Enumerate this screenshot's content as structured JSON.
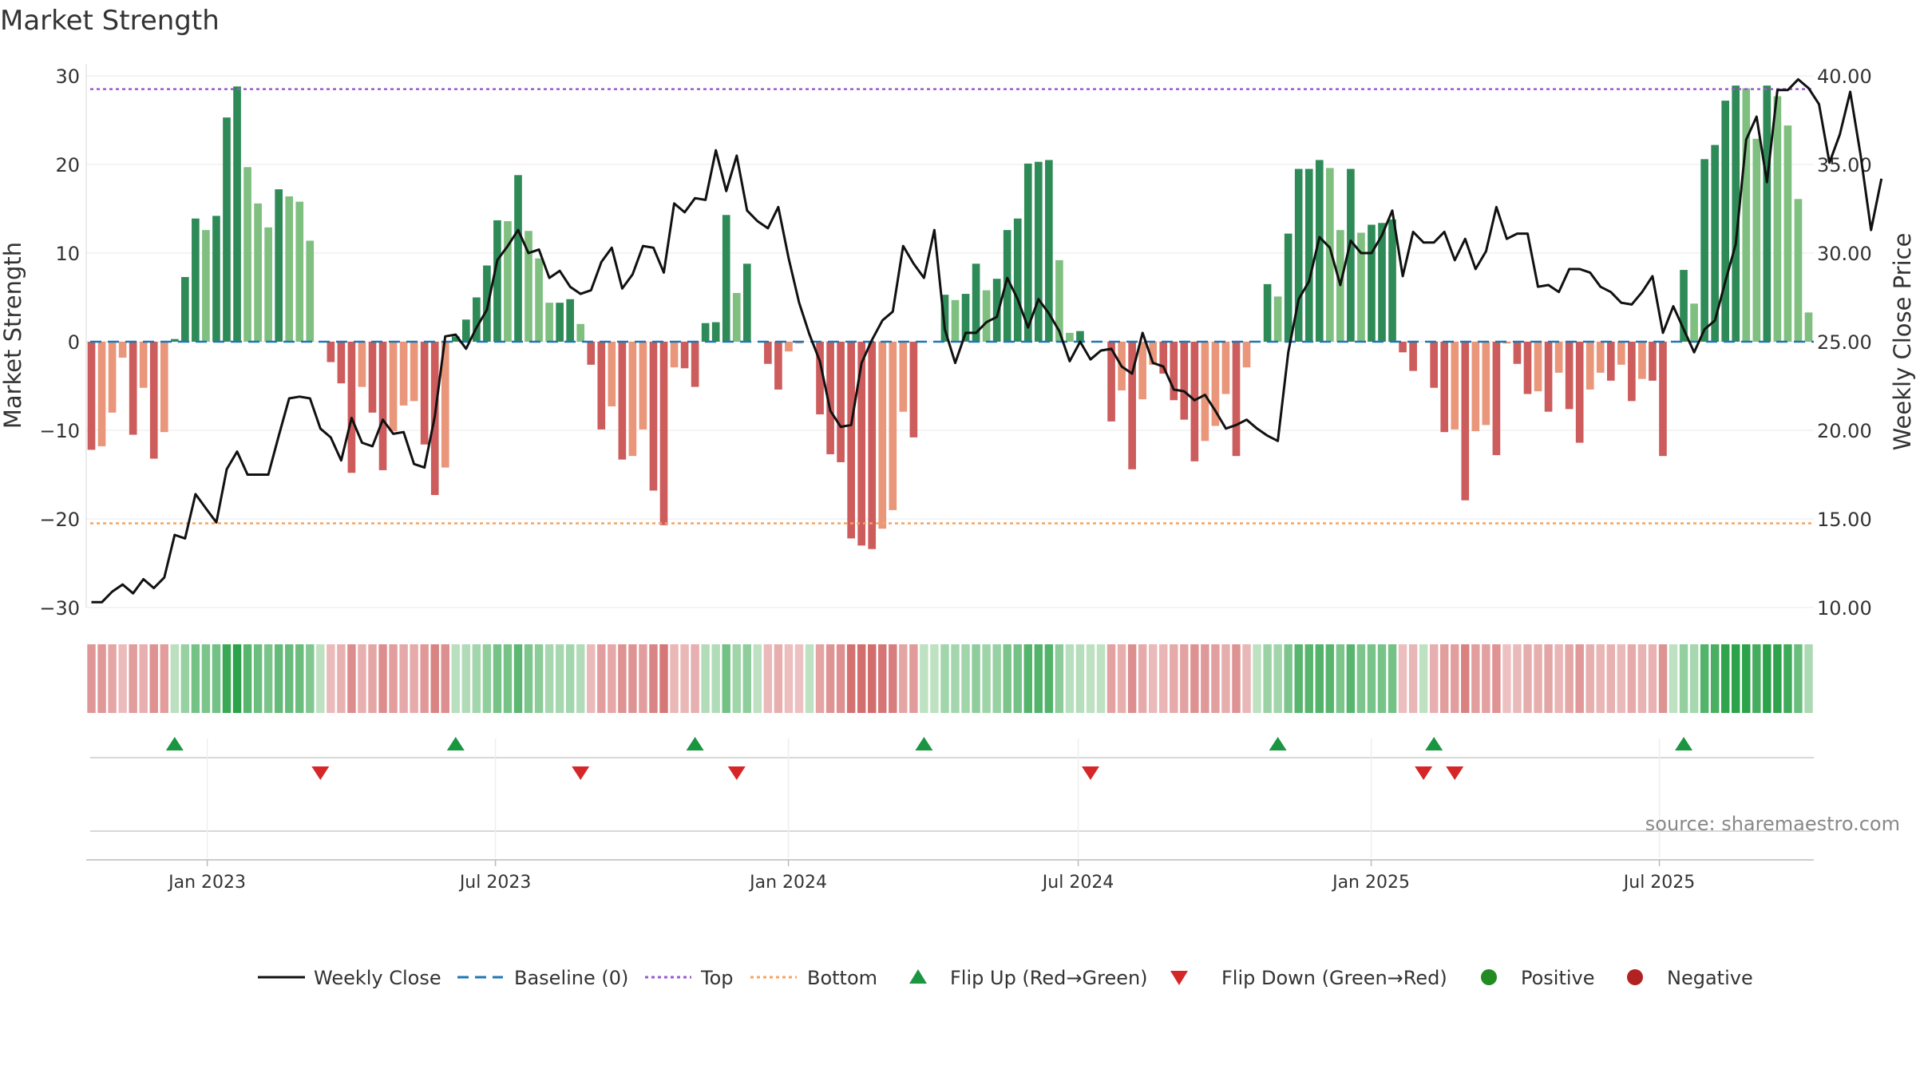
{
  "chart_data": {
    "type": "bar",
    "title": "Market Strength",
    "ylabel_left": "Market Strength",
    "ylabel_right": "Weekly Close Price",
    "ylim_left": [
      -30,
      30
    ],
    "ylim_right": [
      10,
      40
    ],
    "yticks_left": [
      30,
      20,
      10,
      0,
      -10,
      -20,
      -30
    ],
    "yticks_left_labels": [
      "30",
      "20",
      "10",
      "0",
      "−10",
      "−20",
      "−30"
    ],
    "yticks_right": [
      40,
      35,
      30,
      25,
      20,
      15,
      10
    ],
    "yticks_right_labels": [
      "40.00",
      "35.00",
      "30.00",
      "25.00",
      "20.00",
      "15.00",
      "10.00"
    ],
    "x_range": [
      "2022-10-17",
      "2025-10-06"
    ],
    "x_ticks": [
      {
        "label": "Jan 2023",
        "date": "2023-01-01"
      },
      {
        "label": "Jul 2023",
        "date": "2023-07-01"
      },
      {
        "label": "Jan 2024",
        "date": "2024-01-01"
      },
      {
        "label": "Jul 2024",
        "date": "2024-07-01"
      },
      {
        "label": "Jan 2025",
        "date": "2025-01-01"
      },
      {
        "label": "Jul 2025",
        "date": "2025-07-01"
      }
    ],
    "top_line": 28.5,
    "bottom_line": -20.5,
    "baseline": 0,
    "strength": [
      -12.2,
      -11.8,
      -8,
      -1.8,
      -10.5,
      -5.2,
      -13.2,
      -10.2,
      0.3,
      7.3,
      13.9,
      12.6,
      14.2,
      25.3,
      28.8,
      19.7,
      15.6,
      12.9,
      17.2,
      16.4,
      15.8,
      11.4,
      0,
      -2.3,
      -4.7,
      -14.8,
      -5.1,
      -8,
      -14.5,
      -10.1,
      -7.2,
      -6.7,
      -11.6,
      -17.3,
      -14.2,
      0.6,
      2.5,
      5,
      8.6,
      13.7,
      13.6,
      18.8,
      12.5,
      9.4,
      4.4,
      4.4,
      4.8,
      2,
      -2.6,
      -9.9,
      -7.3,
      -13.3,
      -12.9,
      -9.9,
      -16.8,
      -20.7,
      -2.9,
      -3,
      -5.1,
      2.1,
      2.2,
      14.3,
      5.5,
      8.8,
      0,
      -2.5,
      -5.4,
      -1.1,
      -0.2,
      0,
      -8.2,
      -12.7,
      -13.6,
      -22.2,
      -23,
      -23.4,
      -21.1,
      -19,
      -7.9,
      -10.8,
      0,
      0,
      5.3,
      4.7,
      5.4,
      8.8,
      5.8,
      7.1,
      12.6,
      13.9,
      20.1,
      20.3,
      20.5,
      9.2,
      1,
      1.2,
      0,
      0,
      -9,
      -5.5,
      -14.4,
      -6.5,
      -2.6,
      -3.6,
      -6.6,
      -8.8,
      -13.5,
      -11.2,
      -9.5,
      -5.9,
      -12.9,
      -2.9,
      0,
      6.5,
      5.1,
      12.2,
      19.5,
      19.5,
      20.5,
      19.6,
      12.6,
      19.5,
      12.3,
      13.2,
      13.4,
      13.8,
      -1.2,
      -3.3,
      0,
      -5.2,
      -10.2,
      -9.9,
      -17.9,
      -10.1,
      -9.4,
      -12.8,
      -0.2,
      -2.5,
      -5.9,
      -5.6,
      -7.9,
      -3.5,
      -7.6,
      -11.4,
      -5.4,
      -3.5,
      -4.4,
      -2.6,
      -6.7,
      -4.2,
      -4.4,
      -12.9,
      0,
      8.1,
      4.3,
      20.6,
      22.2,
      27.2,
      28.9,
      28.6,
      22.9,
      28.9,
      27.7,
      24.4,
      16.1,
      3.3
    ],
    "flip_up_indices": [
      8,
      35,
      58,
      80,
      114,
      129,
      153
    ],
    "flip_down_indices": [
      22,
      47,
      62,
      96,
      128,
      131
    ],
    "weekly_close": [
      10.3,
      10.3,
      10.9,
      11.3,
      10.8,
      11.6,
      11.1,
      11.7,
      14.1,
      13.9,
      16.4,
      15.6,
      14.8,
      17.8,
      18.8,
      17.5,
      17.5,
      17.5,
      19.7,
      21.8,
      21.9,
      21.8,
      20.1,
      19.6,
      18.3,
      20.7,
      19.3,
      19.1,
      20.6,
      19.8,
      19.9,
      18.1,
      17.9,
      20.8,
      25.3,
      25.4,
      24.6,
      25.8,
      26.8,
      29.6,
      30.4,
      31.3,
      30,
      30.2,
      28.6,
      29,
      28.1,
      27.7,
      27.9,
      29.5,
      30.3,
      28,
      28.8,
      30.4,
      30.3,
      28.9,
      32.8,
      32.3,
      33.1,
      33,
      35.8,
      33.5,
      35.5,
      32.4,
      31.8,
      31.4,
      32.6,
      29.7,
      27.2,
      25.4,
      23.9,
      21.1,
      20.2,
      20.3,
      23.8,
      25.1,
      26.2,
      26.7,
      30.4,
      29.4,
      28.6,
      31.3,
      25.7,
      23.8,
      25.5,
      25.5,
      26.1,
      26.4,
      28.6,
      27.4,
      25.8,
      27.4,
      26.6,
      25.6,
      23.9,
      25,
      24,
      24.5,
      24.6,
      23.6,
      23.2,
      25.5,
      23.8,
      23.6,
      22.3,
      22.2,
      21.7,
      22,
      21.1,
      20.1,
      20.3,
      20.6,
      20.1,
      19.7,
      19.4,
      24.4,
      27.4,
      28.4,
      30.9,
      30.3,
      28.2,
      30.7,
      30,
      30,
      31,
      32.4,
      28.7,
      31.2,
      30.6,
      30.6,
      31.2,
      29.6,
      30.8,
      29.1,
      30.1,
      32.6,
      30.8,
      31.1,
      31.1,
      28.1,
      28.2,
      27.8,
      29.1,
      29.1,
      28.9,
      28.1,
      27.8,
      27.2,
      27.1,
      27.8,
      28.7,
      25.5,
      27,
      25.7,
      24.4,
      25.7,
      26.2,
      28.4,
      30.5,
      36.4,
      37.7,
      34,
      39.2,
      39.2,
      39.8,
      39.3,
      38.4,
      35.1,
      36.7,
      39.1,
      35.5,
      31.3,
      34.2
    ]
  },
  "legend": {
    "weekly_close": "Weekly Close",
    "baseline": "Baseline (0)",
    "top": "Top",
    "bottom": "Bottom",
    "flip_up": "Flip Up (Red→Green)",
    "flip_down": "Flip Down (Green→Red)",
    "positive": "Positive",
    "negative": "Negative"
  },
  "source": "source: sharemaestro.com",
  "colors": {
    "pos_strong": "#2e8b57",
    "pos_weak": "#7fbf7f",
    "neg_strong": "#cd5c5c",
    "neg_weak": "#e9967a",
    "top_line": "#9b59d0",
    "bottom_line": "#f4a460",
    "baseline": "#1f77b4",
    "price_line": "#111111",
    "flip_up": "#1a9641",
    "flip_down": "#d62728",
    "positive_dot": "#228b22",
    "negative_dot": "#b22222"
  }
}
